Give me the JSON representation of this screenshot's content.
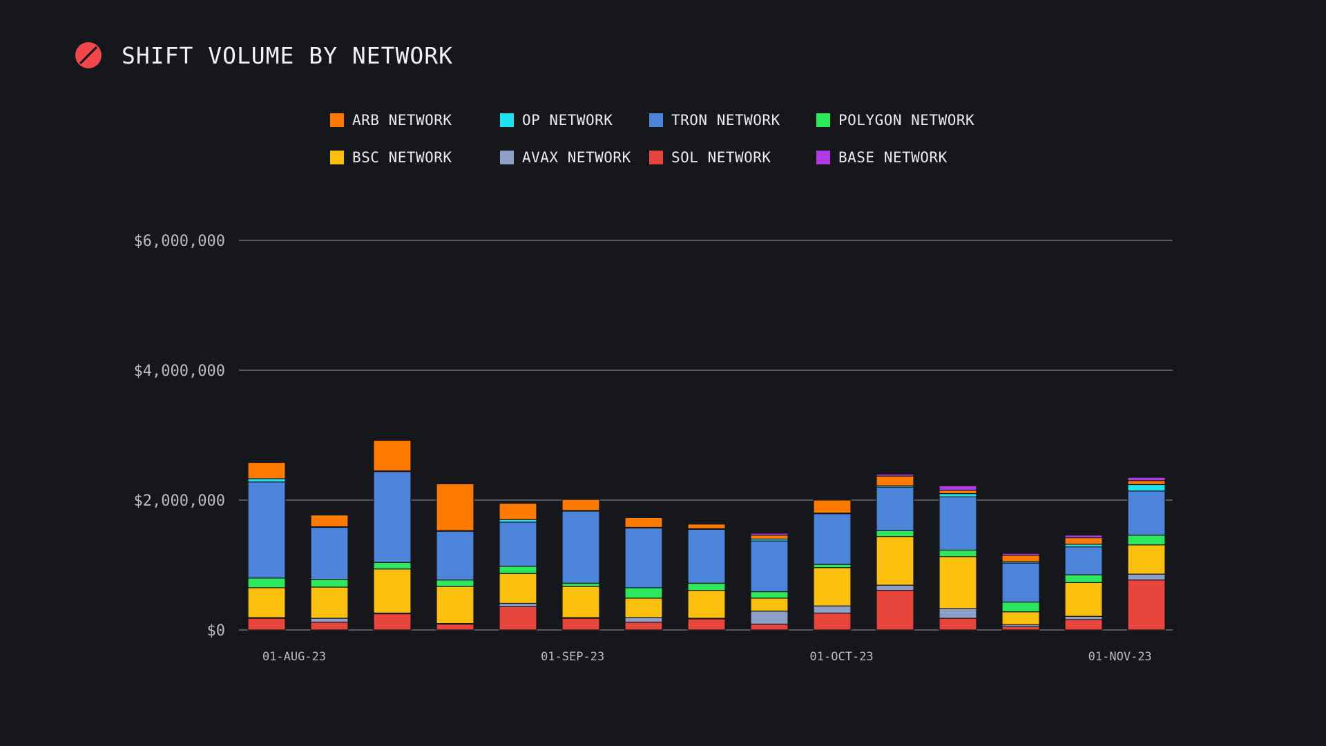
{
  "header": {
    "title": "SHIFT VOLUME BY NETWORK",
    "logo_icon": "slashed-circle-logo",
    "logo_color": "#f2464f"
  },
  "colors": {
    "background": "#16171b",
    "gridline": "#7b7e86",
    "tick_text": "#b9bcc4"
  },
  "chart_data": {
    "type": "bar",
    "stacked": true,
    "title": "SHIFT VOLUME BY NETWORK",
    "xlabel": "",
    "ylabel": "",
    "ylim": [
      0,
      6000000
    ],
    "y_ticks": [
      0,
      2000000,
      4000000,
      6000000
    ],
    "y_tick_labels": [
      "$0",
      "$2,000,000",
      "$4,000,000",
      "$6,000,000"
    ],
    "grid": true,
    "legend_position": "top-center",
    "categories": [
      "01-Aug-23",
      "08-Aug-23",
      "15-Aug-23",
      "22-Aug-23",
      "29-Aug-23",
      "05-Sep-23",
      "12-Sep-23",
      "19-Sep-23",
      "26-Sep-23",
      "03-Oct-23",
      "10-Oct-23",
      "17-Oct-23",
      "24-Oct-23",
      "31-Oct-23",
      "07-Nov-23"
    ],
    "x_tick_labels": [
      {
        "index": 0,
        "label": "01-AUG-23"
      },
      {
        "index": 4.43,
        "label": "01-SEP-23"
      },
      {
        "index": 8.71,
        "label": "01-OCT-23"
      },
      {
        "index": 13.14,
        "label": "01-NOV-23"
      }
    ],
    "stack_order": [
      "SOL NETWORK",
      "AVAX NETWORK",
      "BSC NETWORK",
      "POLYGON NETWORK",
      "TRON NETWORK",
      "OP NETWORK",
      "ARB NETWORK",
      "BASE NETWORK"
    ],
    "series": [
      {
        "name": "ARB NETWORK",
        "color": "#ff7a00",
        "values": [
          250000,
          180000,
          470000,
          720000,
          250000,
          170000,
          150000,
          70000,
          60000,
          200000,
          150000,
          50000,
          100000,
          100000,
          60000
        ]
      },
      {
        "name": "OP NETWORK",
        "color": "#1fe2f0",
        "values": [
          50000,
          10000,
          10000,
          10000,
          40000,
          10000,
          10000,
          10000,
          30000,
          10000,
          20000,
          50000,
          20000,
          40000,
          100000
        ]
      },
      {
        "name": "TRON NETWORK",
        "color": "#4c84d9",
        "values": [
          1480000,
          800000,
          1400000,
          750000,
          680000,
          1110000,
          920000,
          830000,
          780000,
          780000,
          670000,
          820000,
          600000,
          430000,
          680000
        ]
      },
      {
        "name": "POLYGON NETWORK",
        "color": "#2be85c",
        "values": [
          150000,
          120000,
          100000,
          100000,
          110000,
          50000,
          160000,
          110000,
          100000,
          50000,
          90000,
          100000,
          150000,
          120000,
          150000
        ]
      },
      {
        "name": "BSC NETWORK",
        "color": "#fbbf0e",
        "values": [
          460000,
          480000,
          680000,
          570000,
          460000,
          480000,
          300000,
          430000,
          200000,
          590000,
          750000,
          800000,
          200000,
          520000,
          450000
        ]
      },
      {
        "name": "AVAX NETWORK",
        "color": "#8e9fc9",
        "values": [
          10000,
          60000,
          10000,
          10000,
          50000,
          10000,
          70000,
          10000,
          200000,
          110000,
          80000,
          150000,
          30000,
          50000,
          90000
        ]
      },
      {
        "name": "SOL NETWORK",
        "color": "#e8453c",
        "values": [
          180000,
          120000,
          250000,
          90000,
          360000,
          180000,
          120000,
          170000,
          90000,
          260000,
          610000,
          180000,
          50000,
          160000,
          770000
        ]
      },
      {
        "name": "BASE NETWORK",
        "color": "#b13be6",
        "values": [
          0,
          0,
          0,
          0,
          0,
          0,
          0,
          0,
          30000,
          0,
          30000,
          70000,
          30000,
          40000,
          50000
        ]
      }
    ]
  }
}
